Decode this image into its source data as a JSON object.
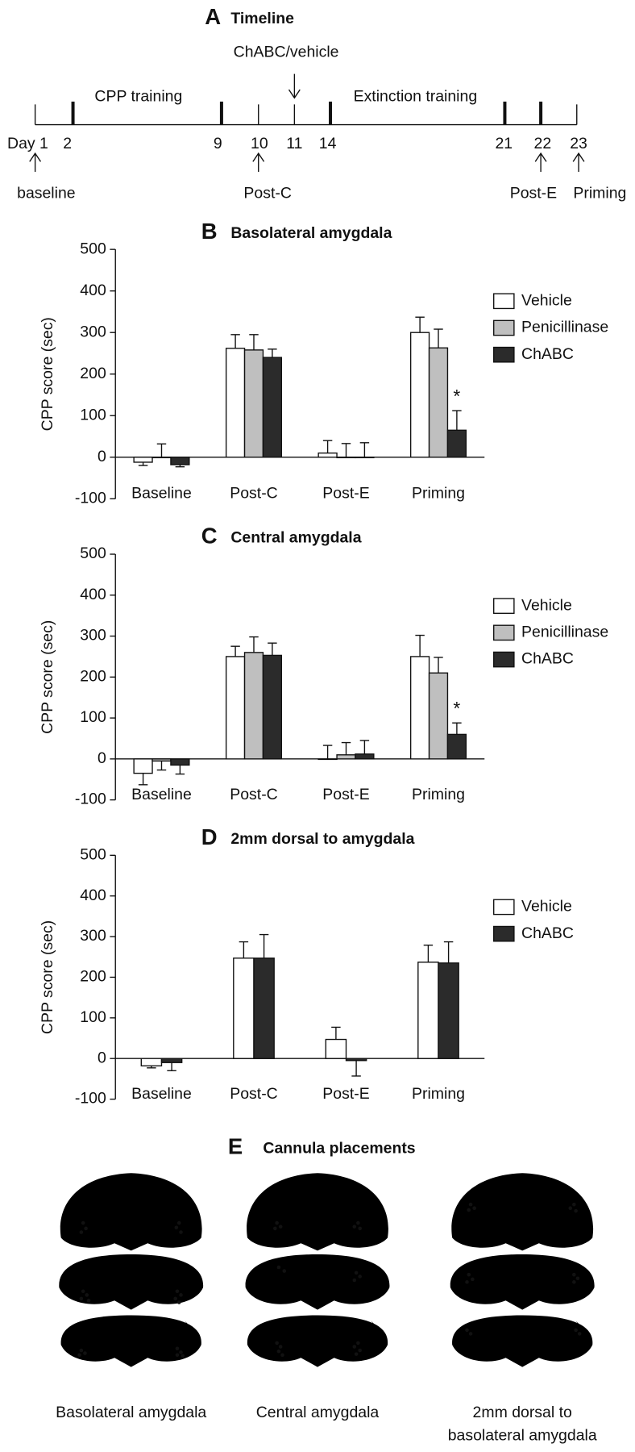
{
  "timeline": {
    "letter": "A",
    "title": "Timeline",
    "days": [
      "Day 1",
      "2",
      "9",
      "10",
      "11",
      "14",
      "21",
      "22",
      "23"
    ],
    "periods": [
      "CPP training",
      "Extinction training"
    ],
    "events": [
      "ChABC/vehicle",
      "baseline",
      "Post-C",
      "Post-E",
      "Priming"
    ]
  },
  "chart_data": [
    {
      "type": "bar",
      "panel": "B",
      "title": "Basolateral amygdala",
      "y_label": "CPP score (sec)",
      "categories": [
        "Baseline",
        "Post-C",
        "Post-E",
        "Priming"
      ],
      "series": [
        {
          "name": "Vehicle",
          "color": "#ffffff",
          "values": [
            -12,
            262,
            10,
            300
          ],
          "errors": [
            8,
            33,
            30,
            37
          ]
        },
        {
          "name": "Penicillinase",
          "color": "#bfbfbf",
          "values": [
            0,
            258,
            0,
            263
          ],
          "errors": [
            32,
            37,
            33,
            45
          ]
        },
        {
          "name": "ChABC",
          "color": "#2b2b2b",
          "values": [
            -18,
            240,
            0,
            65
          ],
          "errors": [
            5,
            20,
            35,
            47
          ]
        }
      ],
      "annotation": "*",
      "ylim": [
        -100,
        500
      ],
      "yticks": [
        -100,
        0,
        100,
        200,
        300,
        400,
        500
      ],
      "legend": "right"
    },
    {
      "type": "bar",
      "panel": "C",
      "title": "Central amygdala",
      "y_label": "CPP score (sec)",
      "categories": [
        "Baseline",
        "Post-C",
        "Post-E",
        "Priming"
      ],
      "series": [
        {
          "name": "Vehicle",
          "color": "#ffffff",
          "values": [
            -35,
            250,
            0,
            250
          ],
          "errors": [
            28,
            25,
            33,
            52
          ]
        },
        {
          "name": "Penicillinase",
          "color": "#bfbfbf",
          "values": [
            -5,
            260,
            10,
            210
          ],
          "errors": [
            22,
            38,
            30,
            38
          ]
        },
        {
          "name": "ChABC",
          "color": "#2b2b2b",
          "values": [
            -15,
            253,
            12,
            60
          ],
          "errors": [
            22,
            30,
            33,
            28
          ]
        }
      ],
      "annotation": "*",
      "ylim": [
        -100,
        500
      ],
      "yticks": [
        -100,
        0,
        100,
        200,
        300,
        400,
        500
      ],
      "legend": "right"
    },
    {
      "type": "bar",
      "panel": "D",
      "title": "2mm dorsal to amygdala",
      "y_label": "CPP score (sec)",
      "categories": [
        "Baseline",
        "Post-C",
        "Post-E",
        "Priming"
      ],
      "series": [
        {
          "name": "Vehicle",
          "color": "#ffffff",
          "values": [
            -18,
            247,
            47,
            237
          ],
          "errors": [
            5,
            40,
            30,
            42
          ]
        },
        {
          "name": "ChABC",
          "color": "#2b2b2b",
          "values": [
            -10,
            247,
            -5,
            235
          ],
          "errors": [
            20,
            58,
            38,
            52
          ]
        }
      ],
      "ylim": [
        -100,
        500
      ],
      "yticks": [
        -100,
        0,
        100,
        200,
        300,
        400,
        500
      ],
      "legend": "right"
    }
  ],
  "placements": {
    "letter": "E",
    "title": "Cannula placements",
    "labels": [
      [
        "Basolateral amygdala"
      ],
      [
        "Central amygdala"
      ],
      [
        "2mm dorsal to",
        "basolateral amygdala"
      ]
    ]
  }
}
